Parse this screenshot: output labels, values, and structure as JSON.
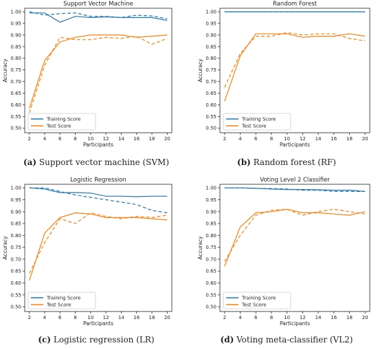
{
  "colors": {
    "training": "#1f77b4",
    "test": "#ff7f0e"
  },
  "chart_data": [
    {
      "type": "line",
      "title": "Support Vector Machine",
      "xlabel": "Participants",
      "ylabel": "Accuracy",
      "x": [
        2,
        4,
        6,
        8,
        10,
        12,
        14,
        16,
        18,
        20
      ],
      "xticks": [
        2,
        4,
        6,
        8,
        10,
        12,
        14,
        16,
        18,
        20
      ],
      "yticks": [
        0.5,
        0.55,
        0.6,
        0.65,
        0.7,
        0.75,
        0.8,
        0.85,
        0.9,
        0.95,
        1.0
      ],
      "ylim": [
        0.48,
        1.015
      ],
      "xlim": [
        1.4,
        20.6
      ],
      "grid": false,
      "legend_position": "lower-left",
      "series": [
        {
          "name": "Training Score",
          "color": "#1f77b4",
          "dashed": false,
          "values": [
            0.995,
            0.995,
            0.955,
            0.98,
            0.975,
            0.978,
            0.975,
            0.975,
            0.975,
            0.963
          ]
        },
        {
          "name": "",
          "color": "#1f77b4",
          "dashed": true,
          "values": [
            1.0,
            0.985,
            0.992,
            0.995,
            0.98,
            0.98,
            0.975,
            0.985,
            0.982,
            0.97
          ]
        },
        {
          "name": "Test Score",
          "color": "#ff7f0e",
          "dashed": false,
          "values": [
            0.585,
            0.79,
            0.87,
            0.89,
            0.9,
            0.9,
            0.9,
            0.89,
            0.895,
            0.9
          ]
        },
        {
          "name": "",
          "color": "#ff7f0e",
          "dashed": true,
          "values": [
            0.565,
            0.77,
            0.89,
            0.88,
            0.88,
            0.89,
            0.885,
            0.895,
            0.86,
            0.885
          ]
        }
      ],
      "caption_letter": "(a)",
      "caption_text": " Support vector machine (SVM)"
    },
    {
      "type": "line",
      "title": "Random Forest",
      "xlabel": "Participants",
      "ylabel": "Accuracy",
      "x": [
        2,
        4,
        6,
        8,
        10,
        12,
        14,
        16,
        18,
        20
      ],
      "xticks": [
        2,
        4,
        6,
        8,
        10,
        12,
        14,
        16,
        18,
        20
      ],
      "yticks": [
        0.5,
        0.55,
        0.6,
        0.65,
        0.7,
        0.75,
        0.8,
        0.85,
        0.9,
        0.95,
        1.0
      ],
      "ylim": [
        0.48,
        1.015
      ],
      "xlim": [
        1.4,
        20.6
      ],
      "grid": false,
      "legend_position": "lower-left",
      "series": [
        {
          "name": "Training Score",
          "color": "#1f77b4",
          "dashed": false,
          "values": [
            1.0,
            1.0,
            1.0,
            1.0,
            1.0,
            1.0,
            1.0,
            1.0,
            1.0,
            1.0
          ]
        },
        {
          "name": "",
          "color": "#1f77b4",
          "dashed": true,
          "values": [
            1.0,
            1.0,
            1.0,
            1.0,
            1.0,
            1.0,
            1.0,
            1.0,
            1.0,
            1.0
          ]
        },
        {
          "name": "Test Score",
          "color": "#ff7f0e",
          "dashed": false,
          "values": [
            0.615,
            0.81,
            0.905,
            0.905,
            0.905,
            0.89,
            0.895,
            0.895,
            0.905,
            0.895
          ]
        },
        {
          "name": "",
          "color": "#ff7f0e",
          "dashed": true,
          "values": [
            0.675,
            0.82,
            0.895,
            0.895,
            0.91,
            0.9,
            0.905,
            0.905,
            0.885,
            0.875
          ]
        }
      ],
      "caption_letter": "(b)",
      "caption_text": " Random forest (RF)"
    },
    {
      "type": "line",
      "title": "Logistic Regression",
      "xlabel": "Participants",
      "ylabel": "Accuracy",
      "x": [
        2,
        4,
        6,
        8,
        10,
        12,
        14,
        16,
        18,
        20
      ],
      "xticks": [
        2,
        4,
        6,
        8,
        10,
        12,
        14,
        16,
        18,
        20
      ],
      "yticks": [
        0.5,
        0.55,
        0.6,
        0.65,
        0.7,
        0.75,
        0.8,
        0.85,
        0.9,
        0.95,
        1.0
      ],
      "ylim": [
        0.48,
        1.015
      ],
      "xlim": [
        1.4,
        20.6
      ],
      "grid": false,
      "legend_position": "lower-left",
      "series": [
        {
          "name": "Training Score",
          "color": "#1f77b4",
          "dashed": false,
          "values": [
            1.0,
            0.995,
            0.98,
            0.98,
            0.978,
            0.965,
            0.965,
            0.963,
            0.965,
            0.965
          ]
        },
        {
          "name": "",
          "color": "#1f77b4",
          "dashed": true,
          "values": [
            1.0,
            1.0,
            0.985,
            0.97,
            0.96,
            0.95,
            0.94,
            0.93,
            0.905,
            0.895
          ]
        },
        {
          "name": "Test Score",
          "color": "#ff7f0e",
          "dashed": false,
          "values": [
            0.61,
            0.81,
            0.875,
            0.895,
            0.89,
            0.875,
            0.875,
            0.875,
            0.87,
            0.865
          ]
        },
        {
          "name": "",
          "color": "#ff7f0e",
          "dashed": true,
          "values": [
            0.64,
            0.77,
            0.87,
            0.85,
            0.895,
            0.88,
            0.87,
            0.88,
            0.875,
            0.885
          ]
        }
      ],
      "caption_letter": "(c)",
      "caption_text": " Logistic regression (LR)"
    },
    {
      "type": "line",
      "title": "Voting Level 2 Classifier",
      "xlabel": "Participants",
      "ylabel": "Accuracy",
      "x": [
        2,
        4,
        6,
        8,
        10,
        12,
        14,
        16,
        18,
        20
      ],
      "xticks": [
        2,
        4,
        6,
        8,
        10,
        12,
        14,
        16,
        18,
        20
      ],
      "yticks": [
        0.5,
        0.55,
        0.6,
        0.65,
        0.7,
        0.75,
        0.8,
        0.85,
        0.9,
        0.95,
        1.0
      ],
      "ylim": [
        0.48,
        1.015
      ],
      "xlim": [
        1.4,
        20.6
      ],
      "grid": false,
      "legend_position": "lower-left",
      "series": [
        {
          "name": "Training Score",
          "color": "#1f77b4",
          "dashed": false,
          "values": [
            1.0,
            1.0,
            0.998,
            0.995,
            0.993,
            0.993,
            0.992,
            0.99,
            0.99,
            0.985
          ]
        },
        {
          "name": "",
          "color": "#1f77b4",
          "dashed": true,
          "values": [
            1.0,
            1.0,
            0.998,
            0.997,
            0.995,
            0.99,
            0.99,
            0.985,
            0.985,
            0.985
          ]
        },
        {
          "name": "Test Score",
          "color": "#ff7f0e",
          "dashed": false,
          "values": [
            0.67,
            0.835,
            0.895,
            0.9,
            0.91,
            0.895,
            0.895,
            0.89,
            0.885,
            0.9
          ]
        },
        {
          "name": "",
          "color": "#ff7f0e",
          "dashed": true,
          "values": [
            0.69,
            0.8,
            0.885,
            0.905,
            0.91,
            0.885,
            0.9,
            0.91,
            0.9,
            0.89
          ]
        }
      ],
      "caption_letter": "(d)",
      "caption_text": " Voting meta-classifier (VL2)"
    }
  ]
}
